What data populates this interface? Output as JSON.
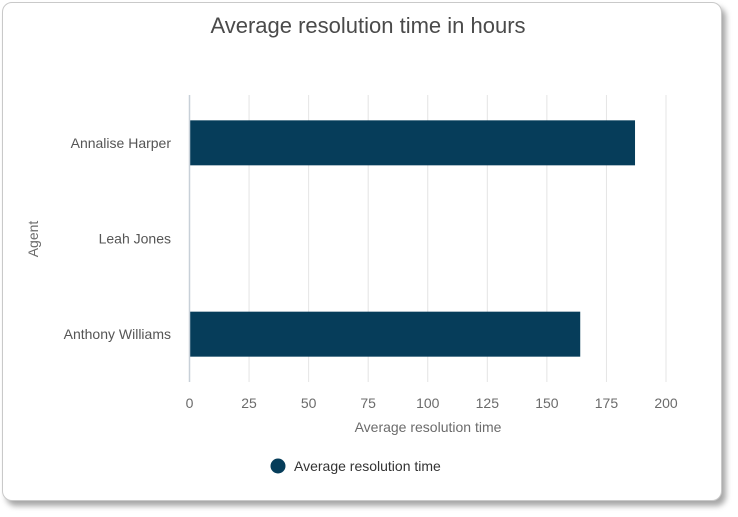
{
  "chart_data": {
    "type": "bar",
    "orientation": "horizontal",
    "title": "Average resolution time in hours",
    "xlabel": "Average resolution time",
    "ylabel": "Agent",
    "categories": [
      "Annalise Harper",
      "Leah Jones",
      "Anthony Williams"
    ],
    "series": [
      {
        "name": "Average resolution time",
        "values": [
          187,
          null,
          164
        ],
        "color": "#063d5a"
      }
    ],
    "xlim": [
      0,
      200
    ],
    "xticks": [
      0,
      25,
      50,
      75,
      100,
      125,
      150,
      175,
      200
    ],
    "grid": true,
    "legend_position": "bottom-center"
  }
}
